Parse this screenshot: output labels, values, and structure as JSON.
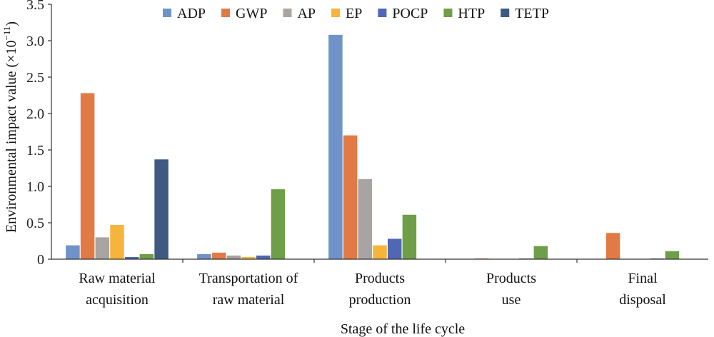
{
  "chart_data": {
    "type": "bar",
    "categories": [
      [
        "Raw material",
        "acquisition"
      ],
      [
        "Transportation of",
        "raw material"
      ],
      [
        "Products",
        "production"
      ],
      [
        "Products",
        "use"
      ],
      [
        "Final",
        "disposal"
      ]
    ],
    "series": [
      {
        "name": "ADP",
        "color": "#6f93c9",
        "values": [
          0.19,
          0.07,
          3.08,
          0.0,
          0.0
        ]
      },
      {
        "name": "GWP",
        "color": "#e27a45",
        "values": [
          2.28,
          0.09,
          1.7,
          0.01,
          0.36
        ]
      },
      {
        "name": "AP",
        "color": "#a8a4a2",
        "values": [
          0.3,
          0.05,
          1.1,
          0.0,
          0.0
        ]
      },
      {
        "name": "EP",
        "color": "#f6b53a",
        "values": [
          0.47,
          0.03,
          0.19,
          0.0,
          0.0
        ]
      },
      {
        "name": "POCP",
        "color": "#5068b3",
        "values": [
          0.03,
          0.05,
          0.28,
          0.01,
          0.01
        ]
      },
      {
        "name": "HTP",
        "color": "#6f9e48",
        "values": [
          0.07,
          0.96,
          0.61,
          0.18,
          0.11
        ]
      },
      {
        "name": "TETP",
        "color": "#3f5a80",
        "values": [
          1.37,
          0.0,
          0.0,
          0.0,
          0.0
        ]
      }
    ],
    "yticks": [
      "0",
      "0.5",
      "1.0",
      "1.5",
      "2.0",
      "2.5",
      "3.0",
      "3.5"
    ],
    "ylim": [
      0,
      3.5
    ],
    "ylabel": "Environmental impact value (×10",
    "ylabel_exp": "−11",
    "ylabel_close": ")",
    "xlabel": "Stage of the life cycle",
    "legend_position": "top",
    "grid": false
  }
}
